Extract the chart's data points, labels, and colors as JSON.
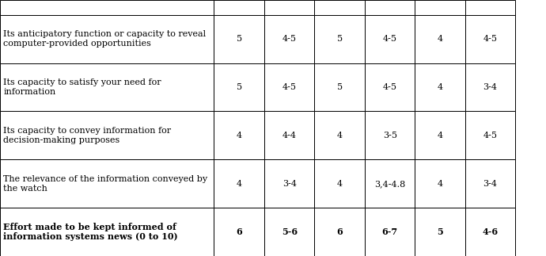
{
  "rows": [
    {
      "label": "Its anticipatory function or capacity to reveal\ncomputer-provided opportunities",
      "values": [
        "5",
        "4-5",
        "5",
        "4-5",
        "4",
        "4-5"
      ],
      "bold": false
    },
    {
      "label": "Its capacity to satisfy your need for\ninformation",
      "values": [
        "5",
        "4-5",
        "5",
        "4-5",
        "4",
        "3-4"
      ],
      "bold": false
    },
    {
      "label": "Its capacity to convey information for\ndecision-making purposes",
      "values": [
        "4",
        "4-4",
        "4",
        "3-5",
        "4",
        "4-5"
      ],
      "bold": false
    },
    {
      "label": "The relevance of the information conveyed by\nthe watch",
      "values": [
        "4",
        "3-4",
        "4",
        "3,4-4.8",
        "4",
        "3-4"
      ],
      "bold": false
    },
    {
      "label": "Effort made to be kept informed of\ninformation systems news (0 to 10)",
      "values": [
        "6",
        "5-6",
        "6",
        "6-7",
        "5",
        "4-6"
      ],
      "bold": true
    }
  ],
  "background_color": "#ffffff",
  "border_color": "#000000",
  "text_color": "#000000",
  "font_size": 8.0
}
